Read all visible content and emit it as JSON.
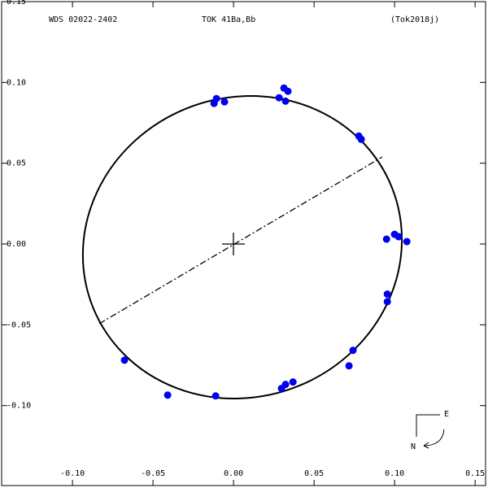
{
  "chart_data": {
    "type": "scatter",
    "title": "WDS 02022-2402",
    "subtitle": "TOK  41Ba,Bb",
    "reference": "(Tok2018j)",
    "compass_east": "E",
    "compass_north": "N",
    "xlim": [
      -0.145,
      0.158
    ],
    "ylim": [
      -0.151,
      0.151
    ],
    "xticks": [
      {
        "value": -0.1,
        "label": "-0.10"
      },
      {
        "value": -0.05,
        "label": "-0.05"
      },
      {
        "value": 0,
        "label": "0.00"
      },
      {
        "value": 0.05,
        "label": "0.05"
      },
      {
        "value": 0.1,
        "label": "0.10"
      },
      {
        "value": 0.15,
        "label": "0.15"
      }
    ],
    "yticks": [
      {
        "value": 0.15,
        "label": "0.15"
      },
      {
        "value": 0.1,
        "label": "0.10"
      },
      {
        "value": 0.05,
        "label": "0.05"
      },
      {
        "value": 0,
        "label": "0.00"
      },
      {
        "value": -0.05,
        "label": "-0.05"
      },
      {
        "value": -0.1,
        "label": "-0.10"
      }
    ],
    "series": [
      {
        "color": "#0000ee",
        "x": [
          -0.0106,
          -0.0121,
          -0.0056,
          0.0313,
          0.0338,
          0.0283,
          0.0323,
          0.0778,
          0.0793,
          0.095,
          0.1,
          0.1025,
          0.1076,
          0.0955,
          0.0955,
          0.0742,
          0.0717,
          0.0369,
          0.0323,
          0.0298,
          -0.0677,
          -0.0409,
          -0.0111
        ],
        "values": [
          0.09,
          0.087,
          0.088,
          0.0965,
          0.0945,
          0.0905,
          0.0884,
          0.0668,
          0.0648,
          0.003,
          0.006,
          0.0045,
          0.0015,
          -0.031,
          -0.0357,
          -0.0658,
          -0.0754,
          -0.0854,
          -0.0869,
          -0.0894,
          -0.0719,
          -0.0935,
          -0.094
        ]
      }
    ]
  }
}
